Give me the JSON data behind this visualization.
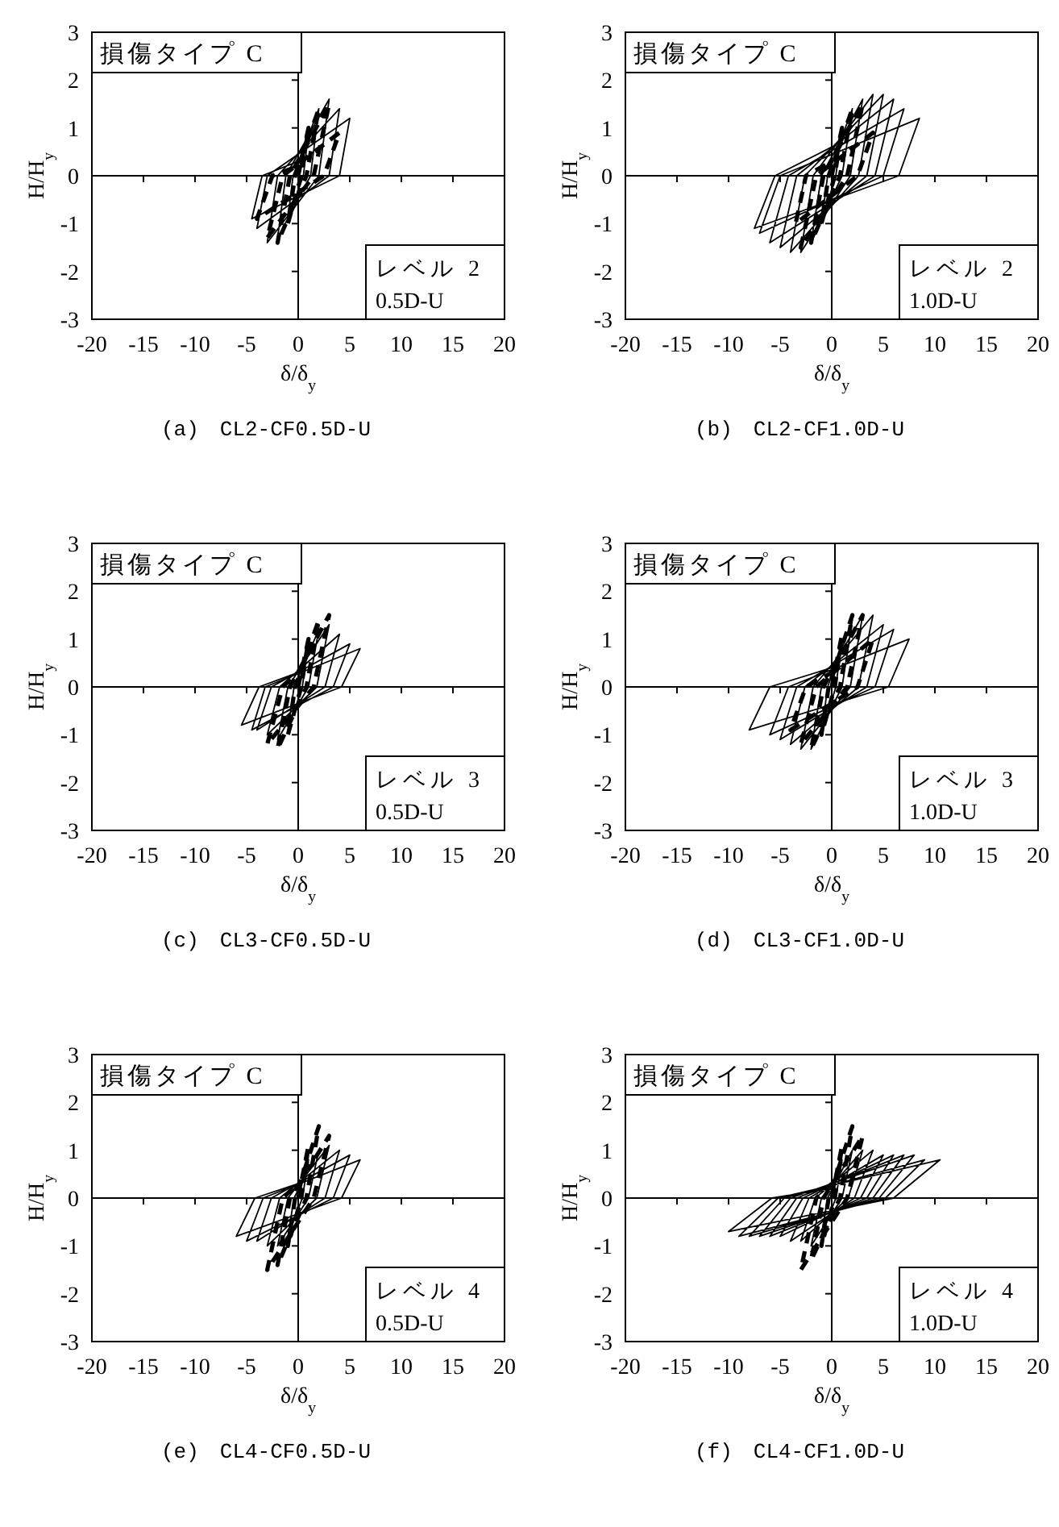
{
  "chart_data": [
    {
      "type": "line",
      "title": "(a)　CL2-CF0.5D-U",
      "xlabel": "δ/δ$_{y}$",
      "ylabel": "H/H$_{y}$",
      "xlim": [
        -20,
        20
      ],
      "ylim": [
        -3,
        3
      ],
      "xticks": [
        -20,
        -15,
        -10,
        -5,
        0,
        5,
        10,
        15,
        20
      ],
      "yticks": [
        -3,
        -2,
        -1,
        0,
        1,
        2,
        3
      ],
      "annotations": [
        "損傷タイプ C",
        "レベル 2",
        "0.5D-U"
      ],
      "series": [
        {
          "color": "#000000",
          "line_style": "solid",
          "x": [
            0,
            1,
            0.5,
            -1,
            -0.5,
            2,
            1.2,
            -2,
            -1.2,
            3,
            2,
            -3,
            -2,
            4,
            3,
            -4,
            -3,
            5,
            4,
            -4.5,
            -3.5,
            0
          ],
          "values": [
            0,
            0.9,
            0,
            -0.9,
            0,
            1.4,
            0,
            -1.3,
            0,
            1.6,
            0,
            -1.4,
            0,
            1.4,
            0,
            -1.1,
            0,
            1.2,
            0,
            -0.9,
            0,
            0.3
          ]
        },
        {
          "color": "#000000",
          "line_style": "dashed",
          "x": [
            0,
            1,
            0.3,
            -1,
            -0.3,
            2,
            0.8,
            -2,
            -0.8,
            3,
            1.5,
            -3,
            -1.5,
            4,
            2.5,
            -4,
            -2.5,
            0
          ],
          "values": [
            0,
            1.0,
            0,
            -1.0,
            0,
            1.4,
            0,
            -1.4,
            0,
            1.5,
            0,
            -1.3,
            0,
            0.9,
            0,
            -0.9,
            0,
            0.2
          ]
        }
      ]
    },
    {
      "type": "line",
      "title": "(b)　CL2-CF1.0D-U",
      "xlabel": "δ/δ$_{y}$",
      "ylabel": "H/H$_{y}$",
      "xlim": [
        -20,
        20
      ],
      "ylim": [
        -3,
        3
      ],
      "xticks": [
        -20,
        -15,
        -10,
        -5,
        0,
        5,
        10,
        15,
        20
      ],
      "yticks": [
        -3,
        -2,
        -1,
        0,
        1,
        2,
        3
      ],
      "annotations": [
        "損傷タイプ C",
        "レベル 2",
        "1.0D-U"
      ],
      "series": [
        {
          "color": "#000000",
          "line_style": "solid",
          "x": [
            0,
            1,
            0.4,
            -1,
            -0.4,
            2,
            1,
            -2,
            -1,
            3,
            1.8,
            -3,
            -1.8,
            4,
            2.6,
            -4,
            -2.6,
            5,
            3.4,
            -5,
            -3.4,
            6,
            4.2,
            -6,
            -4.2,
            7,
            5,
            -7,
            -5,
            8.5,
            6.5,
            -7.5,
            -5.5,
            0
          ],
          "values": [
            0,
            1.0,
            0,
            -1.0,
            0,
            1.4,
            0,
            -1.4,
            0,
            1.6,
            0,
            -1.6,
            0,
            1.7,
            0,
            -1.6,
            0,
            1.7,
            0,
            -1.5,
            0,
            1.6,
            0,
            -1.4,
            0,
            1.4,
            0,
            -1.2,
            0,
            1.2,
            0,
            -1.1,
            0,
            0.6
          ]
        },
        {
          "color": "#000000",
          "line_style": "dashed",
          "x": [
            0,
            1,
            0.3,
            -1,
            -0.3,
            2,
            0.8,
            -2,
            -0.8,
            3,
            1.5,
            -3,
            -1.5,
            4,
            2.5,
            -3.5,
            -2.5,
            0
          ],
          "values": [
            0,
            1.0,
            0,
            -1.0,
            0,
            1.4,
            0,
            -1.4,
            0,
            1.5,
            0,
            -1.5,
            0,
            0.9,
            0,
            -1.0,
            0,
            0.3
          ]
        }
      ]
    },
    {
      "type": "line",
      "title": "(c)　CL3-CF0.5D-U",
      "xlabel": "δ/δ$_{y}$",
      "ylabel": "H/H$_{y}$",
      "xlim": [
        -20,
        20
      ],
      "ylim": [
        -3,
        3
      ],
      "xticks": [
        -20,
        -15,
        -10,
        -5,
        0,
        5,
        10,
        15,
        20
      ],
      "yticks": [
        -3,
        -2,
        -1,
        0,
        1,
        2,
        3
      ],
      "annotations": [
        "損傷タイプ C",
        "レベル 3",
        "0.5D-U"
      ],
      "series": [
        {
          "color": "#000000",
          "line_style": "solid",
          "x": [
            0,
            1,
            0.4,
            -1,
            -0.4,
            2,
            1,
            -2,
            -1,
            3,
            1.8,
            -3,
            -1.8,
            4,
            2.6,
            -4,
            -2.6,
            5,
            3.4,
            -4.5,
            -3.2,
            6,
            4.2,
            -5.5,
            -3.8,
            0
          ],
          "values": [
            0,
            0.9,
            0,
            -0.9,
            0,
            1.2,
            0,
            -1.1,
            0,
            1.3,
            0,
            -1.0,
            0,
            1.1,
            0,
            -0.9,
            0,
            0.9,
            0,
            -0.9,
            0,
            0.8,
            0,
            -0.8,
            0,
            0.3
          ]
        },
        {
          "color": "#000000",
          "line_style": "dashed",
          "x": [
            0,
            1,
            0.3,
            -1,
            -0.3,
            2,
            0.8,
            -2,
            -0.8,
            3,
            1.5,
            -3,
            -1.5,
            0
          ],
          "values": [
            0,
            1.0,
            0,
            -1.0,
            0,
            1.4,
            0,
            -1.3,
            0,
            1.5,
            0,
            -1.2,
            0,
            0.3
          ]
        }
      ]
    },
    {
      "type": "line",
      "title": "(d)　CL3-CF1.0D-U",
      "xlabel": "δ/δ$_{y}$",
      "ylabel": "H/H$_{y}$",
      "xlim": [
        -20,
        20
      ],
      "ylim": [
        -3,
        3
      ],
      "xticks": [
        -20,
        -15,
        -10,
        -5,
        0,
        5,
        10,
        15,
        20
      ],
      "yticks": [
        -3,
        -2,
        -1,
        0,
        1,
        2,
        3
      ],
      "annotations": [
        "損傷タイプ C",
        "レベル 3",
        "1.0D-U"
      ],
      "series": [
        {
          "color": "#000000",
          "line_style": "solid",
          "x": [
            0,
            1,
            0.4,
            -1,
            -0.4,
            2,
            1,
            -2,
            -1,
            3,
            1.8,
            -3,
            -1.8,
            4,
            2.6,
            -4,
            -2.6,
            5,
            3.4,
            -5,
            -3.4,
            6,
            4.2,
            -6,
            -4.2,
            7.5,
            5.5,
            -8,
            -6,
            0
          ],
          "values": [
            0,
            1.0,
            0,
            -1.0,
            0,
            1.4,
            0,
            -1.3,
            0,
            1.5,
            0,
            -1.3,
            0,
            1.5,
            0,
            -1.2,
            0,
            1.3,
            0,
            -1.1,
            0,
            1.2,
            0,
            -1.0,
            0,
            1.0,
            0,
            -0.9,
            0,
            0.4
          ]
        },
        {
          "color": "#000000",
          "line_style": "dashed",
          "x": [
            0,
            1,
            0.3,
            -1,
            -0.3,
            2,
            0.8,
            -2,
            -0.8,
            3,
            1.5,
            -3,
            -1.5,
            4,
            2.5,
            -4,
            -2.5,
            0
          ],
          "values": [
            0,
            1.1,
            0,
            -1.0,
            0,
            1.5,
            0,
            -1.3,
            0,
            1.5,
            0,
            -1.2,
            0,
            1.0,
            0,
            -0.9,
            0,
            0.3
          ]
        }
      ]
    },
    {
      "type": "line",
      "title": "(e)　CL4-CF0.5D-U",
      "xlabel": "δ/δ$_{y}$",
      "ylabel": "H/H$_{y}$",
      "xlim": [
        -20,
        20
      ],
      "ylim": [
        -3,
        3
      ],
      "xticks": [
        -20,
        -15,
        -10,
        -5,
        0,
        5,
        10,
        15,
        20
      ],
      "yticks": [
        -3,
        -2,
        -1,
        0,
        1,
        2,
        3
      ],
      "annotations": [
        "損傷タイプ C",
        "レベル 4",
        "0.5D-U"
      ],
      "series": [
        {
          "color": "#000000",
          "line_style": "solid",
          "x": [
            0,
            1,
            0.4,
            -1,
            -0.4,
            2,
            1,
            -2,
            -1,
            3,
            1.8,
            -3,
            -1.8,
            4,
            2.6,
            -4,
            -2.6,
            5,
            3.4,
            -5,
            -3.4,
            6,
            4.2,
            -6,
            -4.2,
            0
          ],
          "values": [
            0,
            0.8,
            0,
            -0.8,
            0,
            1.0,
            0,
            -1.0,
            0,
            1.1,
            0,
            -1.0,
            0,
            1.0,
            0,
            -0.9,
            0,
            0.9,
            0,
            -0.9,
            0,
            0.8,
            0,
            -0.8,
            0,
            0.3
          ]
        },
        {
          "color": "#000000",
          "line_style": "dashed",
          "x": [
            0,
            1,
            0.3,
            -1,
            -0.3,
            2,
            0.8,
            -2,
            -0.8,
            3,
            1.5,
            -3,
            -1.5,
            0
          ],
          "values": [
            0,
            1.1,
            0,
            -1.0,
            0,
            1.5,
            0,
            -1.4,
            0,
            1.3,
            0,
            -1.5,
            0,
            0.3
          ]
        }
      ]
    },
    {
      "type": "line",
      "title": "(f)　CL4-CF1.0D-U",
      "xlabel": "δ/δ$_{y}$",
      "ylabel": "H/H$_{y}$",
      "xlim": [
        -20,
        20
      ],
      "ylim": [
        -3,
        3
      ],
      "xticks": [
        -20,
        -15,
        -10,
        -5,
        0,
        5,
        10,
        15,
        20
      ],
      "yticks": [
        -3,
        -2,
        -1,
        0,
        1,
        2,
        3
      ],
      "annotations": [
        "損傷タイプ C",
        "レベル 4",
        "1.0D-U"
      ],
      "series": [
        {
          "color": "#000000",
          "line_style": "solid",
          "x": [
            0,
            1,
            0.4,
            -1,
            -0.4,
            2,
            1,
            -2,
            -1,
            3,
            1.6,
            -3,
            -1.6,
            4,
            2.2,
            -4,
            -2.2,
            5,
            2.8,
            -5,
            -2.8,
            6,
            3.4,
            -6,
            -3.4,
            7,
            4,
            -7,
            -4,
            8,
            4.6,
            -8,
            -4.6,
            9,
            5.2,
            -9,
            -5.2,
            10.5,
            6,
            -10,
            -5.8,
            0
          ],
          "values": [
            0,
            0.8,
            0,
            -0.8,
            0,
            1.0,
            0,
            -1.0,
            0,
            1.0,
            0,
            -0.9,
            0,
            1.0,
            0,
            -0.9,
            0,
            0.9,
            0,
            -0.8,
            0,
            0.9,
            0,
            -0.8,
            0,
            0.9,
            0,
            -0.8,
            0,
            0.9,
            0,
            -0.8,
            0,
            0.8,
            0,
            -0.8,
            0,
            0.8,
            0,
            -0.7,
            0,
            0.2
          ]
        },
        {
          "color": "#000000",
          "line_style": "dashed",
          "x": [
            0,
            1,
            0.3,
            -1,
            -0.3,
            2,
            0.8,
            -2,
            -0.8,
            3,
            1.5,
            -3,
            -1.5,
            0
          ],
          "values": [
            0,
            1.1,
            0,
            -1.0,
            0,
            1.5,
            0,
            -1.3,
            0,
            1.3,
            0,
            -1.5,
            0,
            0.3
          ]
        }
      ]
    }
  ]
}
